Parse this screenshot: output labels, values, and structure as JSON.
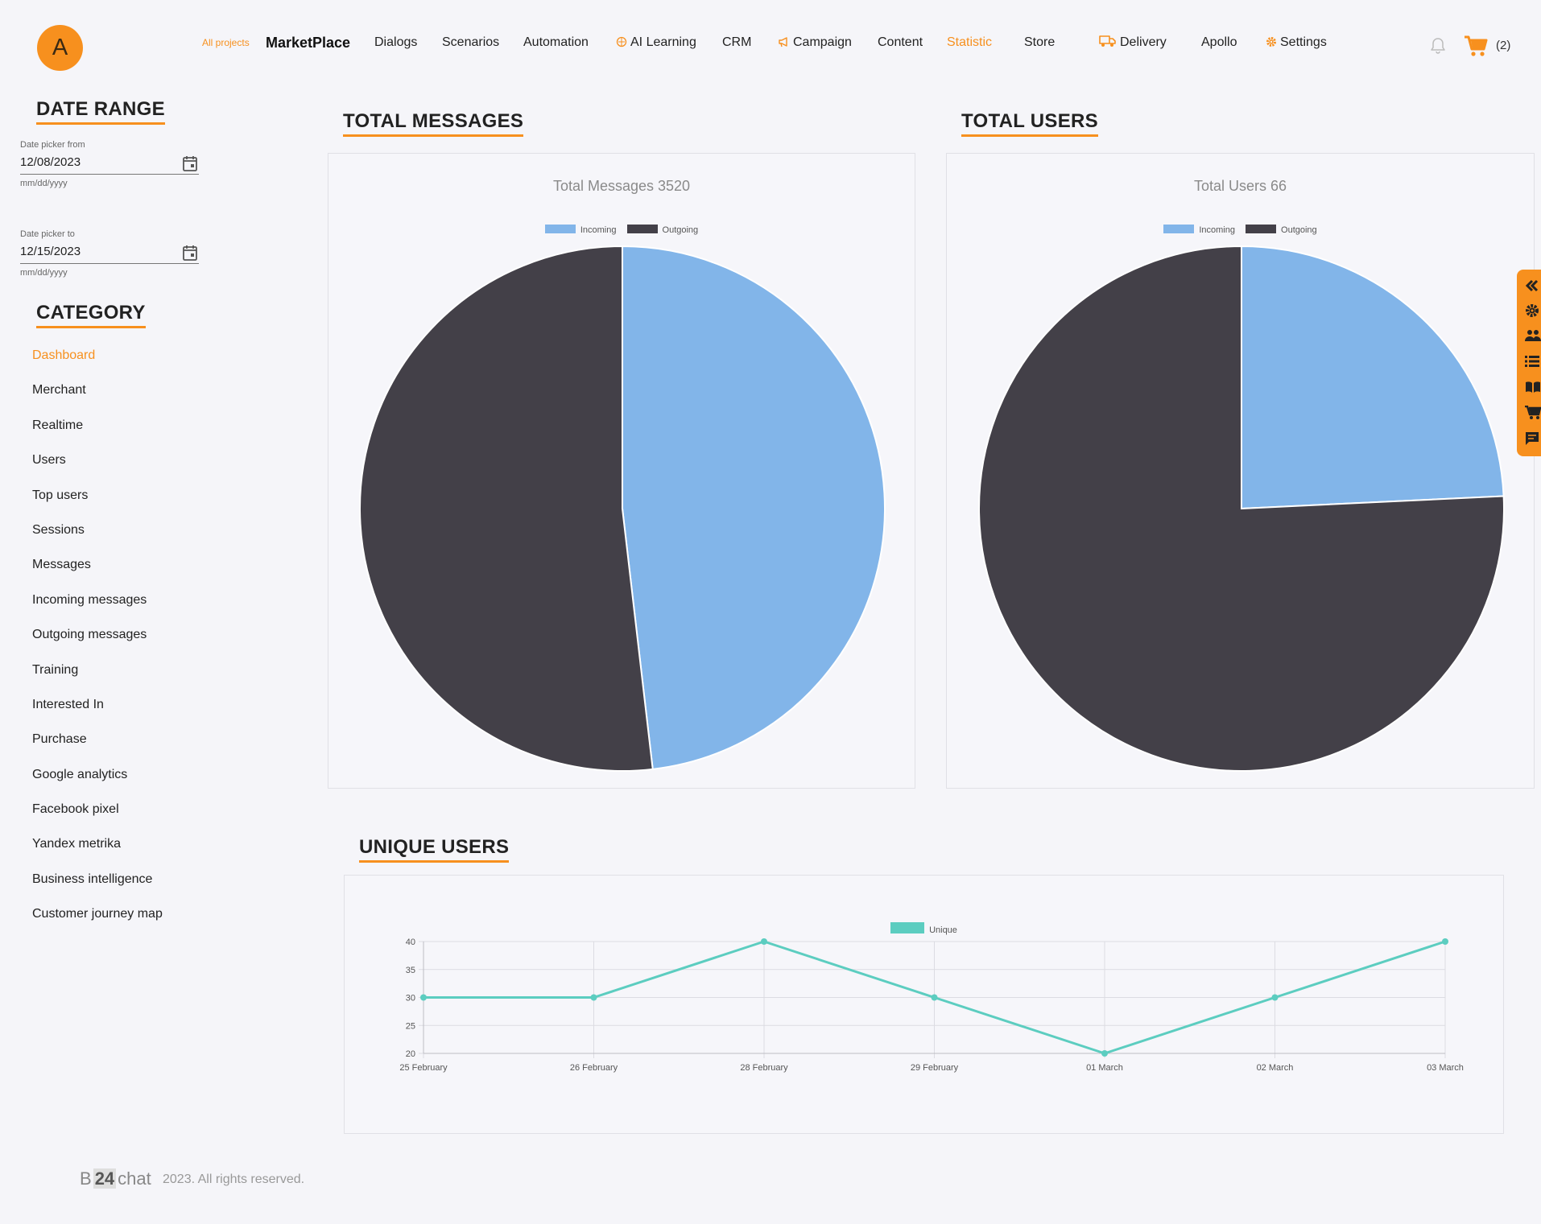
{
  "user": {
    "avatar_letter": "A"
  },
  "nav": {
    "all_projects": "All projects",
    "brand": "MarketPlace",
    "items": [
      "Dialogs",
      "Scenarios",
      "Automation",
      "AI Learning",
      "CRM",
      "Campaign",
      "Content",
      "Statistic",
      "Store",
      "Delivery",
      "Apollo",
      "Settings"
    ],
    "active": "Statistic",
    "cart_count": "(2)"
  },
  "sidebar": {
    "date_range_title": "DATE RANGE",
    "date_from": {
      "label": "Date picker from",
      "value": "12/08/2023",
      "hint": "mm/dd/yyyy"
    },
    "date_to": {
      "label": "Date picker to",
      "value": "12/15/2023",
      "hint": "mm/dd/yyyy"
    },
    "category_title": "CATEGORY",
    "categories": [
      "Dashboard",
      "Merchant",
      "Realtime",
      "Users",
      "Top users",
      "Sessions",
      "Messages",
      "Incoming messages",
      "Outgoing messages",
      "Training",
      "Interested In",
      "Purchase",
      "Google analytics",
      "Facebook pixel",
      "Yandex metrika",
      "Business intelligence",
      "Customer journey map"
    ],
    "active_category": "Dashboard"
  },
  "sections": {
    "total_messages": "TOTAL MESSAGES",
    "total_users": "TOTAL USERS",
    "unique_users": "UNIQUE USERS"
  },
  "colors": {
    "accent": "#f7901e",
    "incoming": "#82b5e9",
    "outgoing": "#434048",
    "unique": "#5ccdc0"
  },
  "chart_data": [
    {
      "type": "pie",
      "title": "Total Messages 3520",
      "categories": [
        "Incoming",
        "Outgoing"
      ],
      "values": [
        1695,
        1825
      ],
      "legend": "top"
    },
    {
      "type": "pie",
      "title": "Total Users 66",
      "categories": [
        "Incoming",
        "Outgoing"
      ],
      "values": [
        16,
        50
      ],
      "legend": "top"
    },
    {
      "type": "line",
      "title": "",
      "categories": [
        "25 February",
        "26 February",
        "28 February",
        "29 February",
        "01 March",
        "02 March",
        "03 March"
      ],
      "series": [
        {
          "name": "Unique",
          "values": [
            30,
            30,
            40,
            30,
            20,
            30,
            40
          ]
        }
      ],
      "ylim": [
        20,
        40
      ],
      "yticks": [
        20,
        25,
        30,
        35,
        40
      ],
      "grid": true,
      "legend": "top"
    }
  ],
  "footer": {
    "logo_b": "B",
    "logo_num": "24",
    "logo_chat": "chat",
    "text": "2023. All rights reserved."
  }
}
